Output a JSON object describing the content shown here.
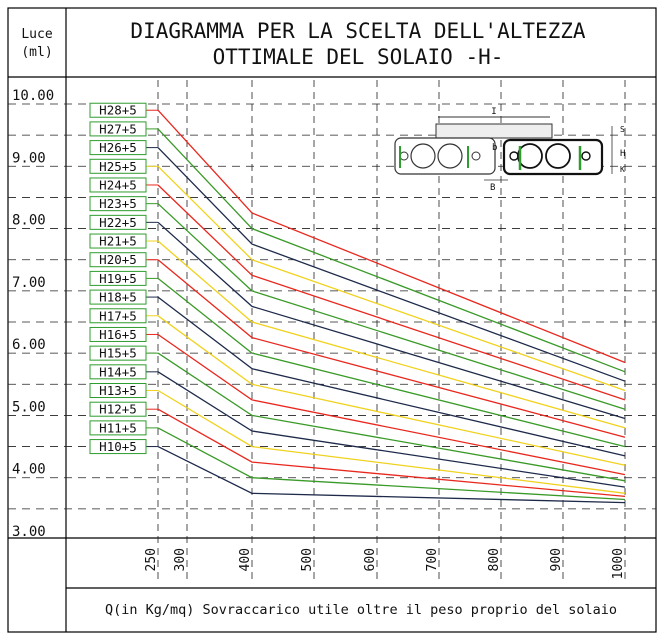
{
  "header": {
    "luce_label": "Luce",
    "unit_label": "(ml)",
    "title_line1": "DIAGRAMMA PER LA SCELTA DELL'ALTEZZA",
    "title_line2": "OTTIMALE DEL SOLAIO -H-"
  },
  "footer": {
    "xlabel": "Q(in Kg/mq) Sovraccarico utile oltre il peso proprio del solaio"
  },
  "diagram": {
    "top_label": "I",
    "dim_b": "B",
    "dim_b_small": "b",
    "dim_h": "H",
    "dim_s": "S",
    "dim_k": "K"
  },
  "colors": {
    "red": "#e8281e",
    "green": "#3a9a28",
    "yellow": "#f0d21e",
    "navy": "#1e2a4a",
    "label_border": "#2e9c2e"
  },
  "chart_data": {
    "type": "line",
    "xlabel": "Q(in Kg/mq) Sovraccarico utile oltre il peso proprio del solaio",
    "ylabel": "Luce (ml)",
    "x_ticks": [
      "250",
      "300",
      "400",
      "500",
      "600",
      "700",
      "800",
      "900",
      "1000"
    ],
    "y_ticks": [
      "10.00",
      "9.00",
      "8.00",
      "7.00",
      "6.00",
      "5.00",
      "4.00",
      "3.00"
    ],
    "xlim": [
      250,
      1000
    ],
    "ylim": [
      3.0,
      10.0
    ],
    "grid": true,
    "x": [
      250,
      400,
      1000
    ],
    "series": [
      {
        "name": "H28+5",
        "color": "red",
        "values": [
          9.9,
          8.25,
          5.85
        ]
      },
      {
        "name": "H27+5",
        "color": "green",
        "values": [
          9.6,
          8.0,
          5.7
        ]
      },
      {
        "name": "H26+5",
        "color": "navy",
        "values": [
          9.3,
          7.75,
          5.55
        ]
      },
      {
        "name": "H25+5",
        "color": "yellow",
        "values": [
          9.0,
          7.5,
          5.4
        ]
      },
      {
        "name": "H24+5",
        "color": "red",
        "values": [
          8.7,
          7.25,
          5.25
        ]
      },
      {
        "name": "H23+5",
        "color": "green",
        "values": [
          8.4,
          7.0,
          5.1
        ]
      },
      {
        "name": "H22+5",
        "color": "navy",
        "values": [
          8.1,
          6.75,
          4.95
        ]
      },
      {
        "name": "H21+5",
        "color": "yellow",
        "values": [
          7.8,
          6.5,
          4.8
        ]
      },
      {
        "name": "H20+5",
        "color": "red",
        "values": [
          7.5,
          6.25,
          4.65
        ]
      },
      {
        "name": "H19+5",
        "color": "green",
        "values": [
          7.2,
          6.0,
          4.5
        ]
      },
      {
        "name": "H18+5",
        "color": "navy",
        "values": [
          6.9,
          5.75,
          4.35
        ]
      },
      {
        "name": "H17+5",
        "color": "yellow",
        "values": [
          6.6,
          5.5,
          4.2
        ]
      },
      {
        "name": "H16+5",
        "color": "red",
        "values": [
          6.3,
          5.25,
          4.05
        ]
      },
      {
        "name": "H15+5",
        "color": "green",
        "values": [
          6.0,
          5.0,
          3.95
        ]
      },
      {
        "name": "H14+5",
        "color": "navy",
        "values": [
          5.7,
          4.75,
          3.85
        ]
      },
      {
        "name": "H13+5",
        "color": "yellow",
        "values": [
          5.4,
          4.5,
          3.75
        ]
      },
      {
        "name": "H12+5",
        "color": "red",
        "values": [
          5.1,
          4.25,
          3.7
        ]
      },
      {
        "name": "H11+5",
        "color": "green",
        "values": [
          4.8,
          4.0,
          3.65
        ]
      },
      {
        "name": "H10+5",
        "color": "navy",
        "values": [
          4.5,
          3.75,
          3.6
        ]
      }
    ],
    "labels_display": [
      "H28+5",
      "H27+5",
      "H26+5",
      "H25+5",
      "H24+5",
      "H23+5",
      "H22+5",
      "H21+5",
      "H20+5",
      "H19+5",
      "H18+5",
      "H17+5",
      "H16+5",
      "H15+5",
      "H14+5",
      "H13+5",
      "H12+5",
      "H11+5",
      "H10+5"
    ]
  }
}
